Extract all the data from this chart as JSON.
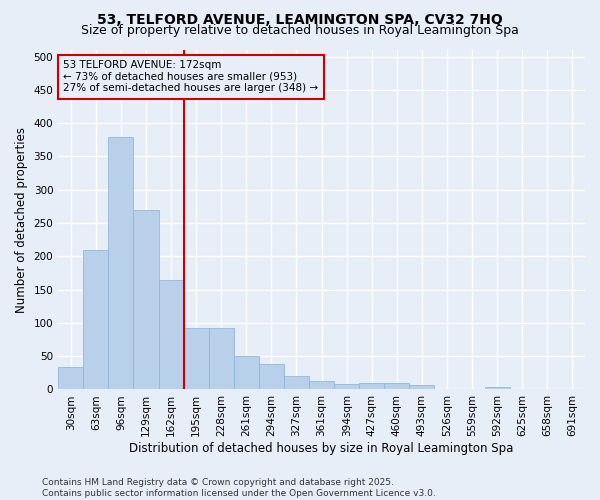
{
  "title": "53, TELFORD AVENUE, LEAMINGTON SPA, CV32 7HQ",
  "subtitle": "Size of property relative to detached houses in Royal Leamington Spa",
  "xlabel": "Distribution of detached houses by size in Royal Leamington Spa",
  "ylabel": "Number of detached properties",
  "categories": [
    "30sqm",
    "63sqm",
    "96sqm",
    "129sqm",
    "162sqm",
    "195sqm",
    "228sqm",
    "261sqm",
    "294sqm",
    "327sqm",
    "361sqm",
    "394sqm",
    "427sqm",
    "460sqm",
    "493sqm",
    "526sqm",
    "559sqm",
    "592sqm",
    "625sqm",
    "658sqm",
    "691sqm"
  ],
  "values": [
    33,
    210,
    380,
    270,
    165,
    92,
    92,
    50,
    38,
    20,
    12,
    8,
    10,
    9,
    7,
    0,
    0,
    4,
    0,
    0,
    1
  ],
  "bar_color": "#b8d0ea",
  "bar_edge_color": "#90b8d8",
  "vline_x": 4.5,
  "vline_color": "#cc0000",
  "annotation_text": "53 TELFORD AVENUE: 172sqm\n← 73% of detached houses are smaller (953)\n27% of semi-detached houses are larger (348) →",
  "annotation_box_color": "#cc0000",
  "footer_text": "Contains HM Land Registry data © Crown copyright and database right 2025.\nContains public sector information licensed under the Open Government Licence v3.0.",
  "ylim": [
    0,
    510
  ],
  "yticks": [
    0,
    50,
    100,
    150,
    200,
    250,
    300,
    350,
    400,
    450,
    500
  ],
  "bg_color": "#e8eef8",
  "grid_color": "#ffffff",
  "title_fontsize": 10,
  "subtitle_fontsize": 9,
  "axis_label_fontsize": 8.5,
  "tick_fontsize": 7.5,
  "footer_fontsize": 6.5
}
